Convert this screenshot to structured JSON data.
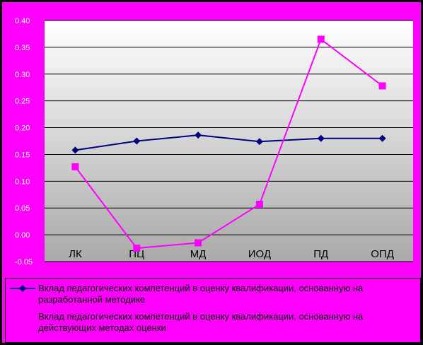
{
  "chart_data": {
    "type": "line",
    "categories": [
      "ЛК",
      "ПЦ",
      "МД",
      "ИОД",
      "ПД",
      "ОПД"
    ],
    "ylim": [
      -0.05,
      0.4
    ],
    "yticks": [
      "0.40",
      "0.35",
      "0.30",
      "0.25",
      "0.20",
      "0.15",
      "0.10",
      "0.05",
      "0.00",
      "-0.05"
    ],
    "grid": true,
    "legend_position": "bottom",
    "series": [
      {
        "name": "Вклад педагогических компетенций в оценку квалификации, основанную на разработанной методике",
        "values": [
          0.158,
          0.175,
          0.186,
          0.174,
          0.18,
          0.18
        ],
        "color": "#000080",
        "marker": "diamond"
      },
      {
        "name": "Вклад педагогических компетенций в оценку квалификации, основанную на действующих методах оценки",
        "values": [
          0.127,
          -0.025,
          -0.015,
          0.057,
          0.365,
          0.278
        ],
        "color": "#ff00ff",
        "marker": "square"
      }
    ]
  }
}
